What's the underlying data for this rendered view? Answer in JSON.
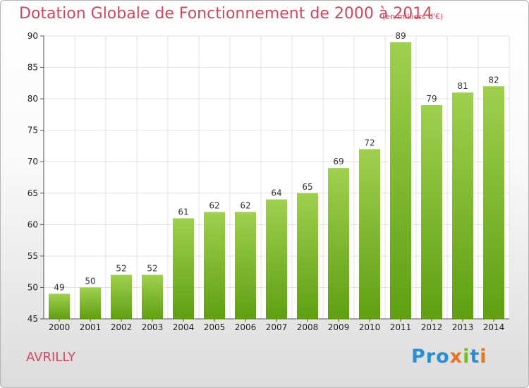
{
  "title": "Dotation Globale de Fonctionnement de 2000 à 2014",
  "subtitle": "(en milliers d'€)",
  "town": "AVRILLY",
  "logo": [
    "Pro",
    "x",
    "i",
    "t",
    "i"
  ],
  "colors": {
    "bar_top": "#9fd04e",
    "bar_bottom": "#5f9f12",
    "title": "#d0465a",
    "grid": "#e2e2e2"
  },
  "chart_data": {
    "type": "bar",
    "title": "Dotation Globale de Fonctionnement de 2000 à 2014",
    "subtitle": "(en milliers d'€)",
    "categories": [
      "2000",
      "2001",
      "2002",
      "2003",
      "2004",
      "2005",
      "2006",
      "2007",
      "2008",
      "2009",
      "2010",
      "2011",
      "2012",
      "2013",
      "2014"
    ],
    "values": [
      49,
      50,
      52,
      52,
      61,
      62,
      62,
      64,
      65,
      69,
      72,
      89,
      79,
      81,
      82
    ],
    "ylim": [
      45,
      90
    ],
    "yticks": [
      45,
      50,
      55,
      60,
      65,
      70,
      75,
      80,
      85,
      90
    ],
    "grid": true,
    "data_labels": true
  }
}
